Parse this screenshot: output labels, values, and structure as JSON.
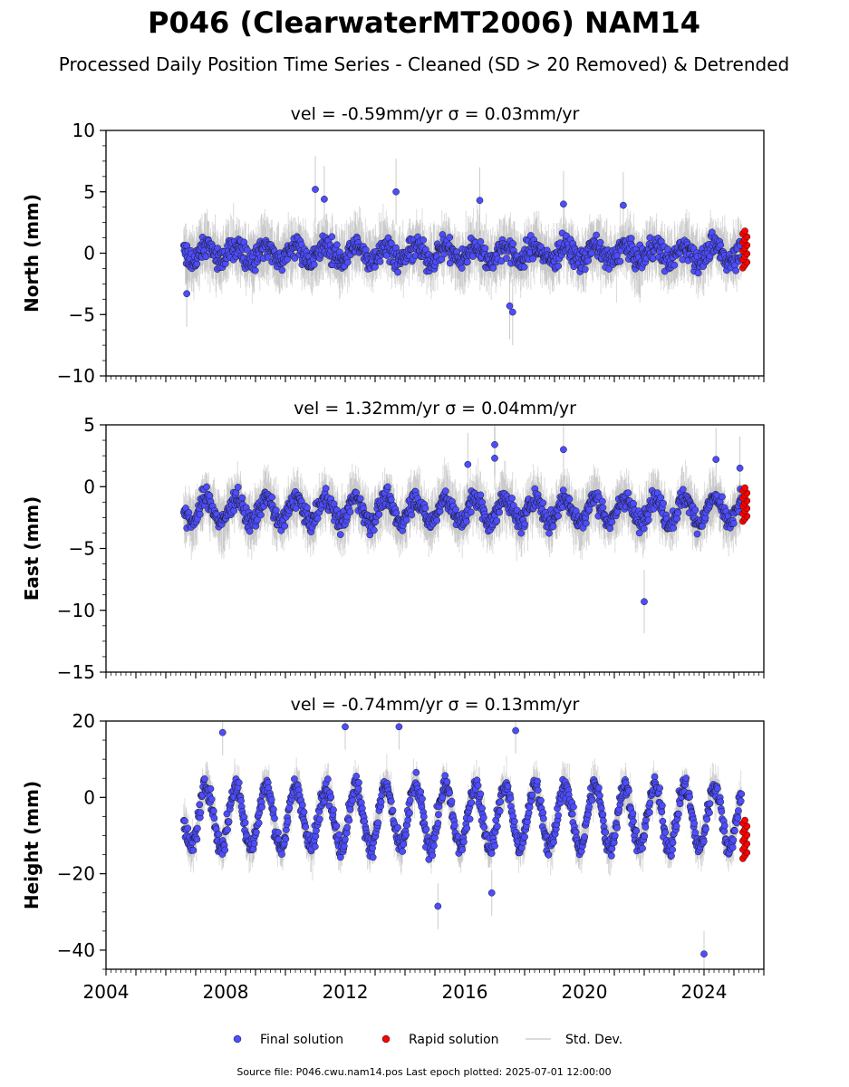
{
  "figure": {
    "title": "P046 (ClearwaterMT2006) NAM14",
    "subtitle": "Processed Daily Position Time Series - Cleaned (SD > 20 Removed) & Detrended",
    "footer": "Source file: P046.cwu.nam14.pos  Last epoch plotted: 2025-07-01 12:00:00"
  },
  "legend": {
    "position": "bottom-center",
    "items": [
      {
        "label": "Final solution",
        "color": "#4d4dff"
      },
      {
        "label": "Rapid solution",
        "color": "#ff0000"
      },
      {
        "label": "Std. Dev.",
        "color": "#cfcfcf"
      }
    ]
  },
  "colors": {
    "final": "#4d4dff",
    "rapid": "#ff0000",
    "stddev": "#9a9a9a",
    "edge": "#1a1a1a"
  },
  "chart_data": [
    {
      "type": "scatter",
      "title": "vel = -0.59mm/yr   σ = 0.03mm/yr",
      "ylabel": "North (mm)",
      "xlim": [
        2004,
        2026
      ],
      "ylim": [
        -10,
        10
      ],
      "yticks": [
        -10,
        -5,
        0,
        5,
        10
      ],
      "xticks": [
        2004,
        2008,
        2012,
        2016,
        2020,
        2024
      ],
      "xtick_labels_shown": false,
      "final_span": [
        2006.6,
        2025.25
      ],
      "rapid_span": [
        2025.3,
        2025.5
      ],
      "pattern": {
        "mean": 0.0,
        "amp": 0.6,
        "noise": 1.2,
        "err": 1.8
      },
      "rapid_range": [
        -1.2,
        1.8
      ],
      "outliers": [
        [
          2011.0,
          5.2
        ],
        [
          2011.3,
          4.4
        ],
        [
          2013.7,
          5.0
        ],
        [
          2016.5,
          4.3
        ],
        [
          2017.6,
          -4.8
        ],
        [
          2019.3,
          4.0
        ],
        [
          2021.3,
          3.9
        ],
        [
          2006.7,
          -3.3
        ],
        [
          2017.5,
          -4.3
        ]
      ]
    },
    {
      "type": "scatter",
      "title": "vel = 1.32mm/yr   σ = 0.04mm/yr",
      "ylabel": "East (mm)",
      "xlim": [
        2004,
        2026
      ],
      "ylim": [
        -15,
        5
      ],
      "yticks": [
        -15,
        -10,
        -5,
        0,
        5
      ],
      "xticks": [
        2004,
        2008,
        2012,
        2016,
        2020,
        2024
      ],
      "xtick_labels_shown": false,
      "final_span": [
        2006.6,
        2025.25
      ],
      "rapid_span": [
        2025.3,
        2025.5
      ],
      "pattern": {
        "mean": -1.9,
        "amp": 1.0,
        "noise": 1.0,
        "err": 1.7
      },
      "rapid_range": [
        -2.8,
        -0.1
      ],
      "outliers": [
        [
          2017.0,
          3.4
        ],
        [
          2017.0,
          2.3
        ],
        [
          2019.3,
          3.0
        ],
        [
          2022.0,
          -9.3
        ],
        [
          2016.1,
          1.8
        ],
        [
          2024.4,
          2.2
        ],
        [
          2025.2,
          1.5
        ]
      ]
    },
    {
      "type": "scatter",
      "title": "vel = -0.74mm/yr   σ = 0.13mm/yr",
      "ylabel": "Height (mm)",
      "xlim": [
        2004,
        2026
      ],
      "ylim": [
        -45,
        20
      ],
      "yticks": [
        -40,
        -20,
        0,
        20
      ],
      "xticks": [
        2004,
        2008,
        2012,
        2016,
        2020,
        2024
      ],
      "xtick_labels_shown": true,
      "final_span": [
        2006.6,
        2025.25
      ],
      "rapid_span": [
        2025.3,
        2025.5
      ],
      "pattern": {
        "mean": -5.0,
        "amp": 8.0,
        "noise": 3.5,
        "err": 4.0
      },
      "rapid_range": [
        -16,
        -6
      ],
      "outliers": [
        [
          2024.0,
          -41.0
        ],
        [
          2012.0,
          18.5
        ],
        [
          2013.8,
          18.5
        ],
        [
          2015.1,
          -28.5
        ],
        [
          2016.9,
          -25.0
        ],
        [
          2017.7,
          17.5
        ],
        [
          2007.9,
          17.0
        ]
      ]
    }
  ]
}
